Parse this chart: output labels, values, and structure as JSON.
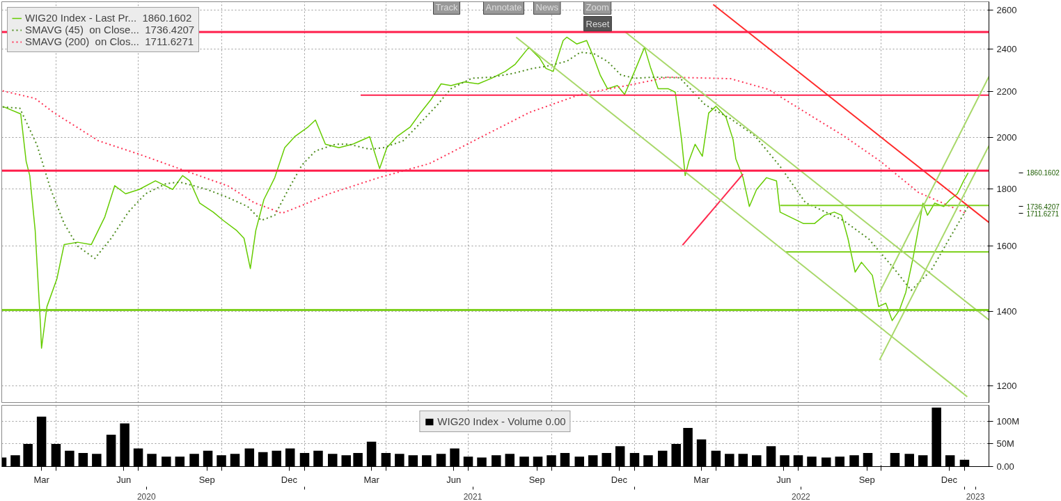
{
  "chart_data": [
    {
      "type": "line",
      "log": true,
      "xlim": [
        "2020-02-01",
        "2023-01-28"
      ],
      "ylim": [
        1160,
        2645
      ],
      "yticks": [
        1200,
        1400,
        1600,
        1800,
        2000,
        2200,
        2400,
        2600
      ],
      "xticks": [
        {
          "value": "2020-04-01",
          "label": null
        },
        {
          "value": "2020-07-01",
          "label": null
        },
        {
          "value": "2020-10-01",
          "label": null
        },
        {
          "value": "2021-01-01",
          "label": null
        },
        {
          "value": "2021-04-01",
          "label": null
        },
        {
          "value": "2021-07-01",
          "label": null
        },
        {
          "value": "2021-10-01",
          "label": null
        },
        {
          "value": "2022-01-01",
          "label": null
        },
        {
          "value": "2022-04-01",
          "label": null
        },
        {
          "value": "2022-07-01",
          "label": null
        },
        {
          "value": "2022-10-01",
          "label": null
        },
        {
          "value": "2023-01-01",
          "label": null
        }
      ],
      "tick_labels": "y",
      "grid": true,
      "legend": "top left",
      "series": [
        {
          "name": "WIG20 Index - Last Pr...  1860.1602",
          "type": "line",
          "color": "#66cc00",
          "x": [
            "2020-02-02",
            "2020-02-22",
            "2020-02-28",
            "2020-03-03",
            "2020-03-09",
            "2020-03-15",
            "2020-03-16",
            "2020-03-22",
            "2020-04-02",
            "2020-04-10",
            "2020-04-25",
            "2020-05-10",
            "2020-05-25",
            "2020-06-05",
            "2020-06-17",
            "2020-07-02",
            "2020-07-20",
            "2020-08-08",
            "2020-08-19",
            "2020-08-27",
            "2020-09-07",
            "2020-09-22",
            "2020-10-03",
            "2020-10-18",
            "2020-10-26",
            "2020-11-02",
            "2020-11-08",
            "2020-11-17",
            "2020-11-29",
            "2020-12-10",
            "2020-12-21",
            "2021-01-05",
            "2021-01-13",
            "2021-01-24",
            "2021-02-08",
            "2021-02-23",
            "2021-03-14",
            "2021-03-25",
            "2021-04-02",
            "2021-04-13",
            "2021-04-28",
            "2021-05-09",
            "2021-05-21",
            "2021-06-01",
            "2021-06-12",
            "2021-06-27",
            "2021-07-12",
            "2021-07-27",
            "2021-08-11",
            "2021-08-22",
            "2021-09-06",
            "2021-09-18",
            "2021-09-25",
            "2021-10-03",
            "2021-10-14",
            "2021-10-18",
            "2021-10-29",
            "2021-11-09",
            "2021-11-17",
            "2021-11-24",
            "2021-12-02",
            "2021-12-13",
            "2021-12-21",
            "2022-01-01",
            "2022-01-12",
            "2022-01-19",
            "2022-01-27",
            "2022-02-07",
            "2022-02-15",
            "2022-02-22",
            "2022-02-26",
            "2022-03-02",
            "2022-03-09",
            "2022-03-17",
            "2022-03-24",
            "2022-04-01",
            "2022-04-12",
            "2022-04-20",
            "2022-04-23",
            "2022-05-01",
            "2022-05-08",
            "2022-05-16",
            "2022-05-27",
            "2022-06-07",
            "2022-06-11",
            "2022-06-22",
            "2022-07-07",
            "2022-07-19",
            "2022-07-30",
            "2022-08-10",
            "2022-08-18",
            "2022-08-25",
            "2022-09-02",
            "2022-09-09",
            "2022-09-21",
            "2022-09-28",
            "2022-10-06",
            "2022-10-13",
            "2022-10-21",
            "2022-10-28",
            "2022-11-05",
            "2022-11-12",
            "2022-11-16",
            "2022-11-21",
            "2022-11-29",
            "2022-12-09",
            "2022-12-16",
            "2022-12-24",
            "2022-12-31",
            "2023-01-05"
          ],
          "values": [
            2133,
            2100,
            1905,
            1850,
            1652,
            1354,
            1297,
            1413,
            1496,
            1605,
            1613,
            1605,
            1699,
            1812,
            1782,
            1798,
            1830,
            1798,
            1850,
            1830,
            1748,
            1716,
            1687,
            1652,
            1626,
            1528,
            1652,
            1761,
            1842,
            1959,
            2004,
            2045,
            2074,
            1973,
            1959,
            1973,
            2004,
            1877,
            1959,
            2004,
            2045,
            2104,
            2164,
            2234,
            2226,
            2243,
            2234,
            2260,
            2292,
            2326,
            2408,
            2356,
            2306,
            2292,
            2442,
            2459,
            2425,
            2442,
            2356,
            2275,
            2212,
            2226,
            2186,
            2292,
            2408,
            2306,
            2212,
            2212,
            2196,
            1992,
            1850,
            1905,
            1973,
            1925,
            2104,
            2133,
            2087,
            1992,
            1915,
            1842,
            1736,
            1798,
            1842,
            1830,
            1716,
            1699,
            1676,
            1676,
            1705,
            1716,
            1705,
            1626,
            1517,
            1548,
            1507,
            1413,
            1423,
            1373,
            1403,
            1455,
            1561,
            1676,
            1748,
            1705,
            1748,
            1736,
            1761,
            1782,
            1830,
            1860.1602
          ]
        },
        {
          "name": "SMAVG (45)  on Close...  1736.4207",
          "type": "line",
          "color": "#4d8b1e",
          "line_style": "dotted",
          "x": [
            "2020-02-02",
            "2020-02-21",
            "2020-03-11",
            "2020-03-26",
            "2020-04-10",
            "2020-04-25",
            "2020-05-14",
            "2020-06-01",
            "2020-06-20",
            "2020-07-09",
            "2020-08-01",
            "2020-08-16",
            "2020-08-31",
            "2020-09-15",
            "2020-10-07",
            "2020-10-30",
            "2020-11-14",
            "2020-11-29",
            "2020-12-14",
            "2020-12-29",
            "2021-01-13",
            "2021-02-04",
            "2021-02-19",
            "2021-03-14",
            "2021-03-29",
            "2021-04-20",
            "2021-05-05",
            "2021-05-28",
            "2021-06-12",
            "2021-07-05",
            "2021-07-27",
            "2021-08-19",
            "2021-09-10",
            "2021-09-25",
            "2021-10-18",
            "2021-11-02",
            "2021-11-17",
            "2021-12-02",
            "2021-12-17",
            "2022-01-01",
            "2022-01-23",
            "2022-02-20",
            "2022-03-04",
            "2022-03-20",
            "2022-04-17",
            "2022-05-14",
            "2022-06-11",
            "2022-07-09",
            "2022-08-20",
            "2022-09-17",
            "2022-10-15",
            "2022-11-03",
            "2022-11-25",
            "2022-12-15",
            "2023-01-05"
          ],
          "values": [
            2130,
            2125,
            1970,
            1800,
            1676,
            1600,
            1560,
            1626,
            1716,
            1782,
            1820,
            1825,
            1812,
            1798,
            1770,
            1736,
            1687,
            1705,
            1798,
            1890,
            1946,
            1973,
            1973,
            1953,
            1959,
            1987,
            2045,
            2140,
            2212,
            2260,
            2265,
            2282,
            2306,
            2316,
            2340,
            2384,
            2377,
            2340,
            2275,
            2260,
            2265,
            2262,
            2209,
            2140,
            2080,
            2008,
            1885,
            1750,
            1687,
            1624,
            1528,
            1461,
            1522,
            1624,
            1736.4207
          ]
        },
        {
          "name": "SMAVG (200)  on Clos...  1711.6271",
          "type": "line",
          "color": "#ff3355",
          "line_style": "dotted",
          "x": [
            "2020-02-02",
            "2020-03-09",
            "2020-03-29",
            "2020-05-18",
            "2020-07-02",
            "2020-08-15",
            "2020-10-09",
            "2020-11-06",
            "2020-12-07",
            "2020-12-30",
            "2021-01-28",
            "2021-03-24",
            "2021-05-19",
            "2021-07-14",
            "2021-09-07",
            "2021-11-02",
            "2021-12-27",
            "2022-02-07",
            "2022-04-17",
            "2022-05-29",
            "2022-07-09",
            "2022-08-20",
            "2022-09-30",
            "2022-11-11",
            "2023-01-03"
          ],
          "values": [
            2202,
            2168,
            2107,
            1987,
            1933,
            1877,
            1810,
            1750,
            1712,
            1741,
            1782,
            1842,
            1896,
            2000,
            2107,
            2186,
            2229,
            2265,
            2258,
            2209,
            2107,
            2008,
            1905,
            1787,
            1711.6271
          ]
        },
        {
          "type": "line",
          "color": "#ff1f4b",
          "x": [
            "2021-03-04",
            "2023-01-28"
          ],
          "values": [
            2183,
            2183
          ]
        },
        {
          "type": "line",
          "color": "#7fd120",
          "x": [
            "2022-06-11",
            "2023-01-28"
          ],
          "values": [
            1740,
            1740
          ]
        },
        {
          "type": "line",
          "color": "#7fd120",
          "x": [
            "2022-06-17",
            "2023-01-28"
          ],
          "values": [
            1581,
            1581
          ]
        },
        {
          "type": "line",
          "color": "#ff2a2a",
          "x": [
            "2022-03-29",
            "2023-01-28"
          ],
          "values": [
            2630,
            1680
          ]
        },
        {
          "type": "line",
          "color": "#ff2a4f",
          "x": [
            "2022-02-23",
            "2022-05-01"
          ],
          "values": [
            1603,
            1856
          ]
        },
        {
          "type": "line",
          "color": "#a8d86a",
          "x": [
            "2021-12-21",
            "2023-01-28"
          ],
          "values": [
            2488,
            1375
          ]
        },
        {
          "type": "line",
          "color": "#a8d86a",
          "x": [
            "2021-08-23",
            "2023-01-04"
          ],
          "values": [
            2459,
            1174
          ]
        },
        {
          "type": "line",
          "color": "#a8d86a",
          "x": [
            "2022-09-29",
            "2023-01-28"
          ],
          "values": [
            1266,
            1967
          ]
        },
        {
          "type": "line",
          "color": "#a8d86a",
          "x": [
            "2022-09-29",
            "2023-01-28"
          ],
          "values": [
            1455,
            2268
          ]
        }
      ],
      "ref_lines": [
        {
          "axis": "y",
          "value": 2485,
          "color": "#ff1f4b"
        },
        {
          "axis": "y",
          "value": 1869,
          "color": "#ff1f4b"
        },
        {
          "axis": "y",
          "value": 1403,
          "color": "#7fd120"
        }
      ],
      "annotations": [
        "Track",
        "Annotate",
        "News",
        "Zoom",
        "Reset",
        "1860.1602",
        "1736.4207",
        "1711.6271"
      ]
    },
    {
      "type": "bar",
      "xlim": [
        "2020-02-01",
        "2023-01-28"
      ],
      "ylim": [
        0,
        135
      ],
      "yticks": [
        {
          "value": 0,
          "label": "0.00"
        },
        {
          "value": 50,
          "label": "50M"
        },
        {
          "value": 100,
          "label": "100M"
        }
      ],
      "xticks": [
        {
          "value": "2020-03-16",
          "label": "Mar"
        },
        {
          "value": "2020-06-15",
          "label": "Jun"
        },
        {
          "value": "2020-09-15",
          "label": "Sep"
        },
        {
          "value": "2020-12-15",
          "label": "Dec"
        },
        {
          "value": "2021-03-16",
          "label": "Mar"
        },
        {
          "value": "2021-06-15",
          "label": "Jun"
        },
        {
          "value": "2021-09-15",
          "label": "Sep"
        },
        {
          "value": "2021-12-15",
          "label": "Dec"
        },
        {
          "value": "2022-03-16",
          "label": "Mar"
        },
        {
          "value": "2022-06-15",
          "label": "Jun"
        },
        {
          "value": "2022-09-15",
          "label": "Sep"
        },
        {
          "value": "2022-12-15",
          "label": "Dec"
        },
        {
          "value": "2020-04-01",
          "label": null
        },
        {
          "value": "2020-07-01",
          "label": null
        },
        {
          "value": "2020-10-01",
          "label": null
        },
        {
          "value": "2021-01-01",
          "label": null
        },
        {
          "value": "2021-04-01",
          "label": null
        },
        {
          "value": "2021-07-01",
          "label": null
        },
        {
          "value": "2021-10-01",
          "label": null
        },
        {
          "value": "2022-01-01",
          "label": null
        },
        {
          "value": "2022-04-01",
          "label": null
        },
        {
          "value": "2022-07-01",
          "label": null
        },
        {
          "value": "2022-10-01",
          "label": null
        },
        {
          "value": "2023-01-01",
          "label": null
        }
      ],
      "x2lim": [
        "2020-02-01",
        "2023-01-28"
      ],
      "x2ticks": [
        {
          "value": "2020-07-10",
          "label": "2020"
        },
        {
          "value": "2021-07-06",
          "label": "2021"
        },
        {
          "value": "2022-07-04",
          "label": "2022"
        },
        {
          "value": "2023-01-13",
          "label": "2023"
        },
        {
          "value": "2021-01-01",
          "label": null
        },
        {
          "value": "2022-01-01",
          "label": null
        },
        {
          "value": "2023-01-01",
          "label": null
        }
      ],
      "grid": true,
      "legend": "top",
      "series": [
        {
          "name": "WIG20 Index - Volume 0.00",
          "color": "#000000",
          "x": [
            "2020-02-01",
            "2020-02-16",
            "2020-03-01",
            "2020-03-16",
            "2020-04-01",
            "2020-04-16",
            "2020-05-01",
            "2020-05-16",
            "2020-06-01",
            "2020-06-16",
            "2020-07-01",
            "2020-07-16",
            "2020-08-01",
            "2020-08-16",
            "2020-09-01",
            "2020-09-16",
            "2020-10-01",
            "2020-10-16",
            "2020-11-01",
            "2020-11-16",
            "2020-12-01",
            "2020-12-16",
            "2021-01-01",
            "2021-01-16",
            "2021-02-01",
            "2021-02-16",
            "2021-03-01",
            "2021-03-16",
            "2021-04-01",
            "2021-04-16",
            "2021-05-01",
            "2021-05-16",
            "2021-06-01",
            "2021-06-16",
            "2021-07-01",
            "2021-07-16",
            "2021-08-01",
            "2021-08-16",
            "2021-09-01",
            "2021-09-16",
            "2021-10-01",
            "2021-10-16",
            "2021-11-01",
            "2021-11-16",
            "2021-12-01",
            "2021-12-16",
            "2022-01-01",
            "2022-01-16",
            "2022-02-01",
            "2022-02-16",
            "2022-03-01",
            "2022-03-16",
            "2022-04-01",
            "2022-04-16",
            "2022-05-01",
            "2022-05-16",
            "2022-06-01",
            "2022-06-16",
            "2022-07-01",
            "2022-07-16",
            "2022-08-01",
            "2022-08-16",
            "2022-09-01",
            "2022-09-16",
            "2022-10-01",
            "2022-10-16",
            "2022-11-01",
            "2022-11-16",
            "2022-12-01",
            "2022-12-16",
            "2023-01-01"
          ],
          "values": [
            20,
            25,
            50,
            110,
            50,
            35,
            30,
            28,
            70,
            95,
            40,
            28,
            22,
            22,
            28,
            35,
            25,
            28,
            40,
            32,
            35,
            40,
            30,
            35,
            28,
            25,
            30,
            55,
            30,
            28,
            25,
            25,
            28,
            40,
            22,
            20,
            25,
            28,
            22,
            22,
            25,
            30,
            22,
            25,
            30,
            45,
            30,
            25,
            35,
            50,
            85,
            60,
            35,
            28,
            28,
            25,
            45,
            25,
            25,
            22,
            20,
            22,
            25,
            30,
            0,
            30,
            28,
            25,
            130,
            25,
            15
          ]
        }
      ]
    }
  ]
}
